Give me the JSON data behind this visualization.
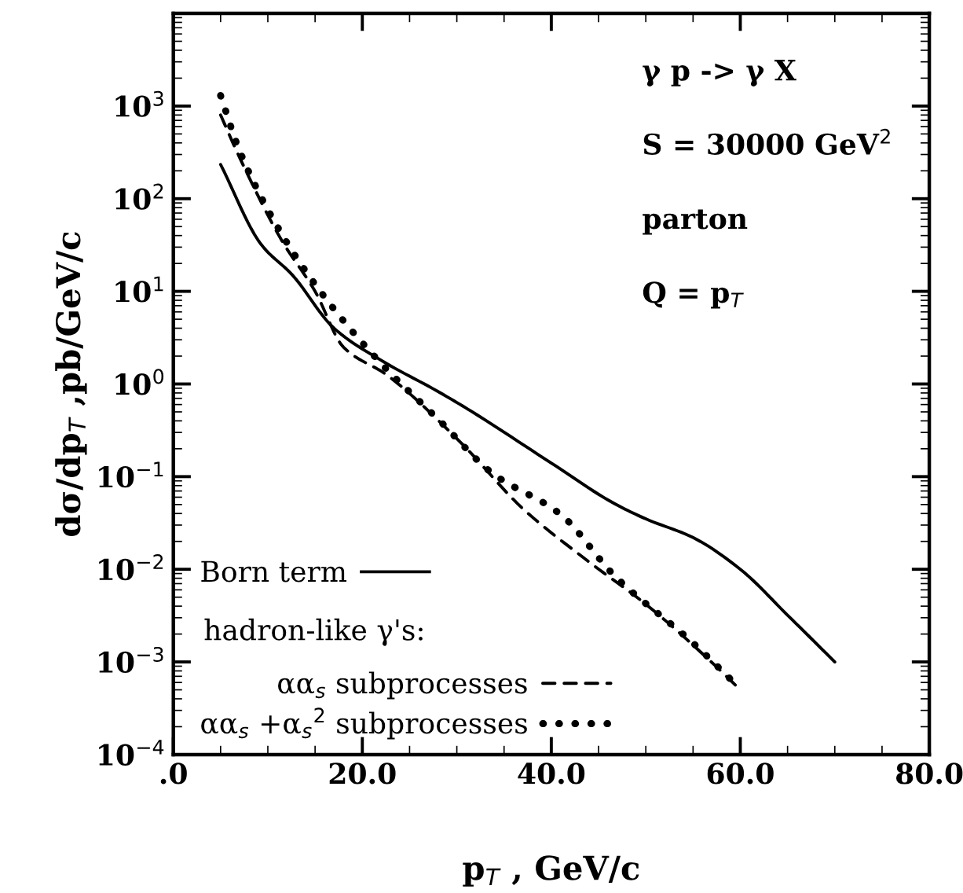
{
  "chart_data": {
    "type": "line",
    "xlabel": "p$_{T}$ , GeV/c",
    "ylabel": "dσ/dp$_{T}$ ,pb/GeV/c",
    "annotations": [
      "γ p -> γ X",
      "S = 30000 GeV$^{2}$",
      "parton",
      "Q = p$_{T}$",
      "hadron-like γ's:"
    ],
    "log": "y",
    "grid": false,
    "legend": "bottom left",
    "xlim": [
      0,
      80
    ],
    "xticks": [
      {
        "value": 0,
        "label": ".0"
      },
      {
        "value": 20,
        "label": "20.0"
      },
      {
        "value": 40,
        "label": "40.0"
      },
      {
        "value": 60,
        "label": "60.0"
      },
      {
        "value": 80,
        "label": "80.0"
      }
    ],
    "ylim": [
      0.0001,
      10000
    ],
    "yticks": [
      {
        "value": 0.0001,
        "label": "10$^{−4}$"
      },
      {
        "value": 0.001,
        "label": "10$^{−3}$"
      },
      {
        "value": 0.01,
        "label": "10$^{−2}$"
      },
      {
        "value": 0.1,
        "label": "10$^{−1}$"
      },
      {
        "value": 1,
        "label": "10$^{0}$"
      },
      {
        "value": 10,
        "label": "10$^{1}$"
      },
      {
        "value": 100,
        "label": "10$^{2}$"
      },
      {
        "value": 1000,
        "label": "10$^{3}$"
      },
      {
        "value": 10000,
        "label": null
      }
    ],
    "series": [
      {
        "name": "Born term",
        "color": "#000000",
        "line_style": "solid",
        "x": [
          5,
          9.3,
          12.6,
          17,
          22,
          28,
          31.5,
          40,
          46.7,
          50,
          55,
          60,
          65,
          70
        ],
        "values": [
          234,
          32,
          15,
          4,
          1.8,
          0.83,
          0.51,
          0.14,
          0.051,
          0.035,
          0.022,
          0.01,
          0.0032,
          0.001
        ]
      },
      {
        "name": "αα$_{s}$ subprocesses",
        "color": "#000000",
        "line_style": "dashed",
        "x": [
          5,
          7,
          11.5,
          15,
          18,
          22.6,
          30.3,
          37,
          44,
          50,
          56.5,
          60
        ],
        "values": [
          800,
          280,
          35,
          10,
          2.5,
          1.25,
          0.24,
          0.045,
          0.012,
          0.0042,
          0.0011,
          0.0005
        ]
      },
      {
        "name": "αα$_{s}$ +α$_{s}$$^{2}$ subprocesses",
        "color": "#000000",
        "line_style": "dotted",
        "x": [
          5,
          7,
          11.5,
          16,
          22,
          28.2,
          33.7,
          41,
          46.7,
          55,
          59.7
        ],
        "values": [
          1300,
          330,
          41,
          8.7,
          1.66,
          0.4,
          0.11,
          0.039,
          0.0085,
          0.0016,
          0.00055
        ]
      }
    ]
  }
}
